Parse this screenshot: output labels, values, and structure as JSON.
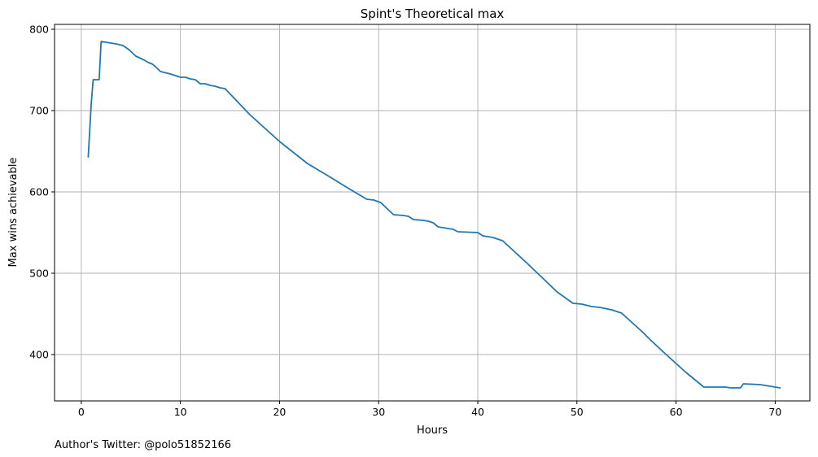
{
  "chart_data": {
    "type": "line",
    "title": "Spint's Theoretical max",
    "xlabel": "Hours",
    "ylabel": "Max wins achievable",
    "xlim": [
      -2.7,
      73.5
    ],
    "ylim": [
      343,
      806
    ],
    "xticks": [
      0,
      10,
      20,
      30,
      40,
      50,
      60,
      70
    ],
    "yticks": [
      400,
      500,
      600,
      700,
      800
    ],
    "grid": true,
    "line_color": "#1f77b4",
    "series": [
      {
        "x": [
          0.7,
          1.0,
          1.2,
          1.5,
          1.8,
          2.0,
          2.5,
          3.0,
          3.5,
          4.2,
          4.8,
          5.5,
          6.2,
          6.8,
          7.2,
          8.0,
          9.0,
          10.0,
          10.5,
          11.0,
          11.5,
          12.0,
          12.5,
          13.0,
          13.5,
          14.0,
          14.5,
          17.0,
          20.0,
          22.8,
          25.0,
          27.0,
          28.8,
          29.5,
          30.2,
          30.8,
          31.5,
          32.5,
          33.0,
          33.5,
          34.5,
          35.0,
          35.5,
          36.0,
          37.0,
          37.5,
          38.0,
          40.0,
          40.5,
          41.5,
          42.0,
          42.5,
          45.0,
          48.0,
          49.6,
          50.5,
          51.5,
          52.3,
          53.5,
          54.5,
          55.5,
          56.5,
          57.5,
          59.0,
          61.0,
          62.8,
          63.5,
          65.0,
          65.5,
          66.5,
          66.8,
          68.5,
          69.0,
          70.5
        ],
        "values": [
          643,
          708,
          738,
          738,
          738,
          785,
          784,
          783,
          782,
          780,
          775,
          767,
          763,
          759,
          757,
          748,
          745,
          741,
          741,
          739,
          738,
          733,
          733,
          731,
          730,
          728,
          727,
          695,
          662,
          635,
          619,
          604,
          591,
          590,
          587,
          580,
          572,
          571,
          570,
          566,
          565,
          564,
          562,
          557,
          555,
          554,
          551,
          550,
          546,
          544,
          542,
          540,
          512,
          477,
          463,
          462,
          459,
          458,
          455,
          451,
          440,
          429,
          417,
          400,
          378,
          360,
          360,
          360,
          359,
          359,
          364,
          363,
          362,
          359
        ]
      }
    ],
    "annotations": [
      "Author's Twitter: @polo51852166"
    ]
  }
}
